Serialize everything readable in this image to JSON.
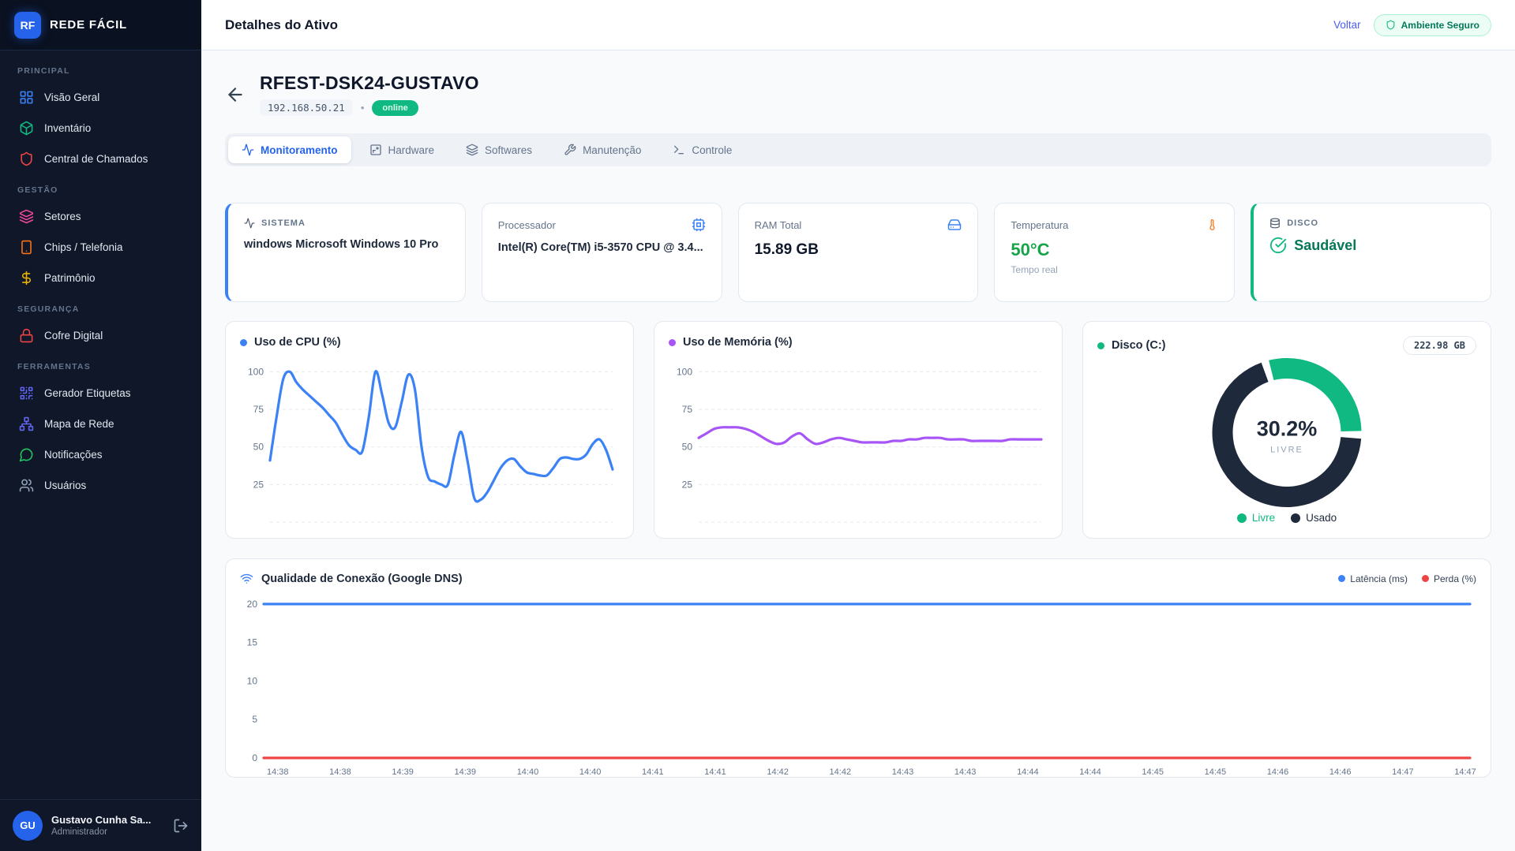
{
  "app": {
    "brand": "REDE FÁCIL",
    "brand_initials": "RF"
  },
  "header": {
    "title": "Detalhes do Ativo",
    "back_link": "Voltar",
    "security_badge": "Ambiente Seguro"
  },
  "sidebar": {
    "sections": [
      {
        "label": "PRINCIPAL",
        "items": [
          {
            "label": "Visão Geral",
            "icon": "dashboard-icon",
            "color": "#3b82f6"
          },
          {
            "label": "Inventário",
            "icon": "box-icon",
            "color": "#10b981"
          },
          {
            "label": "Central de Chamados",
            "icon": "shield-icon",
            "color": "#ef4444"
          }
        ]
      },
      {
        "label": "GESTÃO",
        "items": [
          {
            "label": "Setores",
            "icon": "layers-icon",
            "color": "#ec4899"
          },
          {
            "label": "Chips / Telefonia",
            "icon": "smartphone-icon",
            "color": "#f97316"
          },
          {
            "label": "Patrimônio",
            "icon": "dollar-icon",
            "color": "#eab308"
          }
        ]
      },
      {
        "label": "SEGURANÇA",
        "items": [
          {
            "label": "Cofre Digital",
            "icon": "lock-icon",
            "color": "#ef4444"
          }
        ]
      },
      {
        "label": "FERRAMENTAS",
        "items": [
          {
            "label": "Gerador Etiquetas",
            "icon": "qr-code-icon",
            "color": "#6366f1"
          },
          {
            "label": "Mapa de Rede",
            "icon": "network-icon",
            "color": "#6366f1"
          },
          {
            "label": "Notificações",
            "icon": "message-circle-icon",
            "color": "#22c55e"
          },
          {
            "label": "Usuários",
            "icon": "users-icon",
            "color": "#94a3b8"
          }
        ]
      }
    ],
    "user": {
      "initials": "GU",
      "name": "Gustavo Cunha Sa...",
      "role": "Administrador"
    }
  },
  "device": {
    "name": "RFEST-DSK24-GUSTAVO",
    "ip": "192.168.50.21",
    "separator": "•",
    "status": "online"
  },
  "tabs": [
    {
      "label": "Monitoramento",
      "active": true
    },
    {
      "label": "Hardware",
      "active": false
    },
    {
      "label": "Softwares",
      "active": false
    },
    {
      "label": "Manutenção",
      "active": false
    },
    {
      "label": "Controle",
      "active": false
    }
  ],
  "cards": {
    "sistema": {
      "label": "SISTEMA",
      "value": "windows Microsoft Windows 10 Pro"
    },
    "processador": {
      "label": "Processador",
      "value": "Intel(R) Core(TM) i5-3570 CPU @ 3.4..."
    },
    "ram": {
      "label": "RAM Total",
      "value": "15.89 GB"
    },
    "temperatura": {
      "label": "Temperatura",
      "value": "50°C",
      "sub": "Tempo real"
    },
    "disco": {
      "label": "DISCO",
      "value": "Saudável"
    }
  },
  "colors": {
    "accent": "#2563eb",
    "link": "#4b5cf0",
    "online": "#10b981",
    "temp_ok": "#16a34a",
    "cpu_line": "#3b82f6",
    "mem_line": "#a855f7",
    "disk_free": "#10b981",
    "disk_used": "#1e293b",
    "latency": "#3b82f6",
    "loss": "#ef4444"
  },
  "chart_data": [
    {
      "id": "cpu",
      "type": "line",
      "title": "Uso de CPU (%)",
      "color": "#3b82f6",
      "ylim": [
        0,
        108
      ],
      "yticks": [
        100,
        75,
        50,
        25
      ],
      "grid": true,
      "baseline0": true,
      "values": [
        41,
        70,
        95,
        100,
        93,
        88,
        84,
        80,
        76,
        71,
        66,
        58,
        51,
        48,
        47,
        70,
        100,
        85,
        66,
        63,
        80,
        98,
        88,
        50,
        30,
        27,
        25,
        25,
        45,
        60,
        40,
        16,
        15,
        20,
        28,
        36,
        41,
        42,
        37,
        33,
        32,
        31,
        31,
        36,
        42,
        43,
        42,
        42,
        45,
        52,
        55,
        48,
        35
      ]
    },
    {
      "id": "mem",
      "type": "line",
      "title": "Uso de Memória (%)",
      "color": "#a855f7",
      "ylim": [
        0,
        108
      ],
      "yticks": [
        100,
        75,
        50,
        25
      ],
      "grid": true,
      "baseline0": true,
      "values": [
        56,
        59,
        62,
        63,
        63,
        63,
        62,
        60,
        57,
        54,
        52,
        53,
        57,
        59,
        55,
        52,
        53,
        55,
        56,
        55,
        54,
        53,
        53,
        53,
        53,
        54,
        54,
        55,
        55,
        56,
        56,
        56,
        55,
        55,
        55,
        54,
        54,
        54,
        54,
        54,
        55,
        55,
        55,
        55,
        55
      ]
    },
    {
      "id": "disk",
      "type": "donut",
      "title": "Disco (C:)",
      "dot_color": "#10b981",
      "total_label": "222.98 GB",
      "center_value": "30.2%",
      "center_label": "LIVRE",
      "start_angle": -14,
      "slices": [
        {
          "name": "Livre",
          "pct": 30.2,
          "color": "#10b981"
        },
        {
          "name": "Usado",
          "pct": 69.8,
          "color": "#1e293b"
        }
      ]
    },
    {
      "id": "conn",
      "type": "line-multi",
      "title": "Qualidade de Conexão (Google DNS)",
      "ylim": [
        0,
        20.6
      ],
      "yticks": [
        20,
        15,
        10,
        5,
        0
      ],
      "grid": false,
      "x_labels": [
        "14:38",
        "14:38",
        "14:39",
        "14:39",
        "14:40",
        "14:40",
        "14:41",
        "14:41",
        "14:42",
        "14:42",
        "14:43",
        "14:43",
        "14:44",
        "14:44",
        "14:45",
        "14:45",
        "14:46",
        "14:46",
        "14:47",
        "14:47"
      ],
      "series": [
        {
          "name": "Latência (ms)",
          "color": "#3b82f6",
          "values": [
            20,
            20,
            20,
            20,
            20,
            20,
            20,
            20,
            20,
            20,
            20,
            20,
            20,
            20,
            20,
            20,
            20,
            20,
            20,
            20
          ]
        },
        {
          "name": "Perda (%)",
          "color": "#ef4444",
          "values": [
            0,
            0,
            0,
            0,
            0,
            0,
            0,
            0,
            0,
            0,
            0,
            0,
            0,
            0,
            0,
            0,
            0,
            0,
            0,
            0
          ]
        }
      ]
    }
  ]
}
